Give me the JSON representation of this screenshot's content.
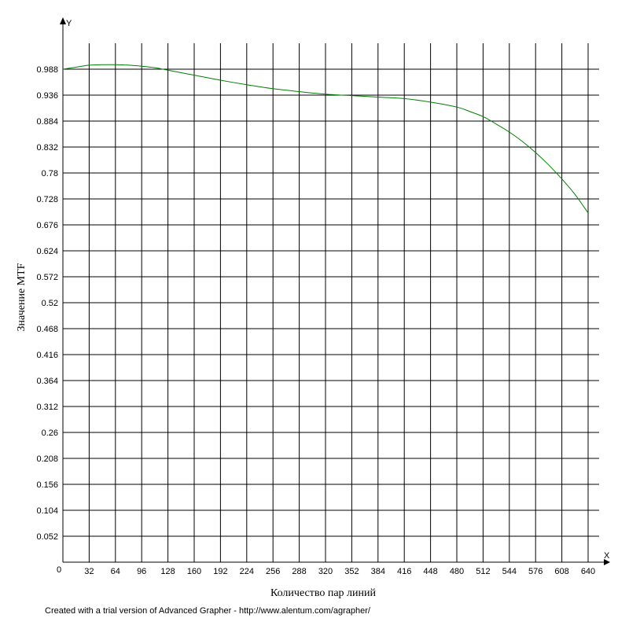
{
  "chart_data": {
    "type": "line",
    "xlabel": "Количество пар линий",
    "ylabel": "Значение MTF",
    "x_axis_letter": "X",
    "y_axis_letter": "Y",
    "origin_label": "0",
    "xlim": [
      0,
      640
    ],
    "ylim": [
      0,
      0.988
    ],
    "x_ticks": [
      "32",
      "64",
      "96",
      "128",
      "160",
      "192",
      "224",
      "256",
      "288",
      "320",
      "352",
      "384",
      "416",
      "448",
      "480",
      "512",
      "544",
      "576",
      "608",
      "640"
    ],
    "y_ticks": [
      "0.052",
      "0.104",
      "0.156",
      "0.208",
      "0.26",
      "0.312",
      "0.364",
      "0.416",
      "0.468",
      "0.52",
      "0.572",
      "0.624",
      "0.676",
      "0.728",
      "0.78",
      "0.832",
      "0.884",
      "0.936",
      "0.988"
    ],
    "grid": true,
    "line_color": "#007f00",
    "series": [
      {
        "x": [
          0,
          16,
          32,
          48,
          64,
          80,
          96,
          112,
          128,
          160,
          192,
          224,
          256,
          288,
          320,
          352,
          384,
          416,
          448,
          480,
          496,
          512,
          528,
          544,
          560,
          576,
          592,
          608,
          624,
          640
        ],
        "y": [
          0.988,
          0.992,
          0.996,
          0.997,
          0.997,
          0.996,
          0.994,
          0.991,
          0.986,
          0.976,
          0.966,
          0.957,
          0.949,
          0.943,
          0.938,
          0.935,
          0.932,
          0.929,
          0.922,
          0.912,
          0.903,
          0.893,
          0.878,
          0.862,
          0.843,
          0.821,
          0.796,
          0.768,
          0.737,
          0.7
        ]
      }
    ]
  },
  "footer": {
    "credit": "Created with a trial version of Advanced Grapher - http://www.alentum.com/agrapher/"
  }
}
